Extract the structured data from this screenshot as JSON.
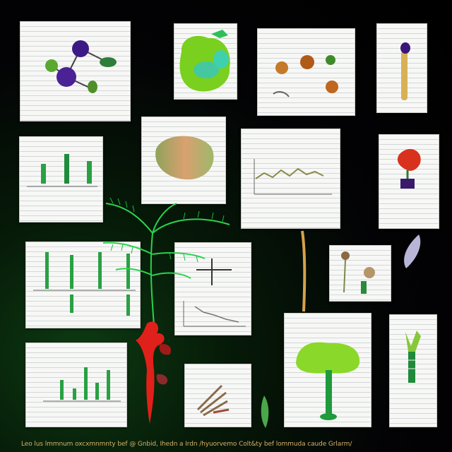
{
  "caption": "Leo lus lmmnum oxcxmnmnty bef @ Gnbid, Ihedn a Irdn /hyuorvemo Colt&ty bef lommuda caude Grlarm/",
  "colors": {
    "background": "#000000",
    "card": "#f7f8f6",
    "plant_green": "#2db84a",
    "flower_red": "#e0201a",
    "accent_purple": "#4a1a8a",
    "caption": "#d9b06a"
  },
  "panels": [
    {
      "name": "panel-molecule-diagram",
      "icon": "molecule-icon"
    },
    {
      "name": "panel-green-leaf",
      "icon": "leaf-icon"
    },
    {
      "name": "panel-seed-pods",
      "icon": "seed-icon"
    },
    {
      "name": "panel-root-specimen",
      "icon": "root-icon"
    },
    {
      "name": "panel-stems-chart",
      "icon": "stem-icon"
    },
    {
      "name": "panel-tissue-sample",
      "icon": "tissue-icon"
    },
    {
      "name": "panel-line-chart",
      "icon": "line-chart-icon"
    },
    {
      "name": "panel-red-flower",
      "icon": "flower-icon"
    },
    {
      "name": "panel-bar-chart-left",
      "icon": "bar-chart-icon"
    },
    {
      "name": "panel-cross-chart",
      "icon": "scatter-chart-icon"
    },
    {
      "name": "panel-plant-parts",
      "icon": "plant-icon"
    },
    {
      "name": "panel-green-bars",
      "icon": "bar-chart-icon"
    },
    {
      "name": "panel-dried-plants",
      "icon": "herb-icon"
    },
    {
      "name": "panel-tree",
      "icon": "tree-icon"
    },
    {
      "name": "panel-sprout",
      "icon": "sprout-icon"
    }
  ]
}
